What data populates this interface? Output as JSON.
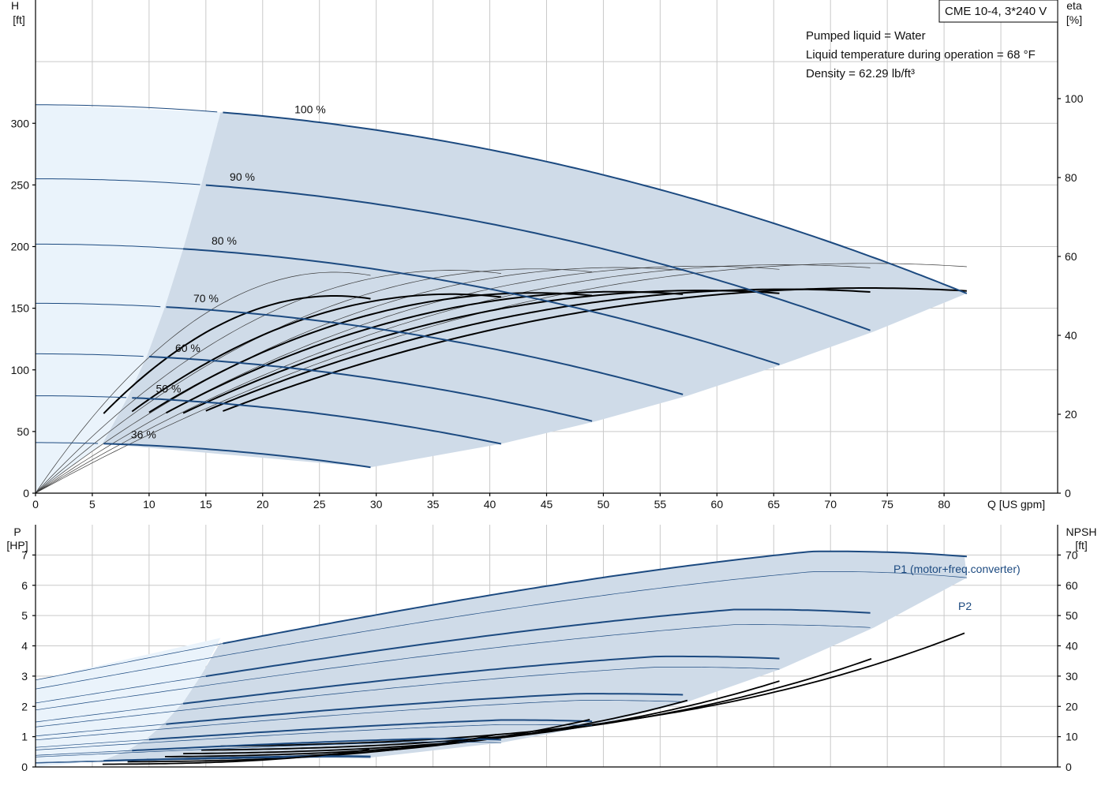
{
  "header": {
    "model_label": "CME 10-4, 3*240 V",
    "liquid_info": [
      "Pumped liquid = Water",
      "Liquid temperature during operation = 68 °F",
      "Density = 62.29 lb/ft³"
    ]
  },
  "colors": {
    "curve": "#1c4a80",
    "eta": "#000000",
    "thin": "#3a3a3a",
    "band": "#cfdbe8",
    "light_band": "#eaf3fb"
  },
  "chart_data": [
    {
      "type": "line",
      "title": "",
      "y_axis": {
        "label": [
          "H",
          "[ft]"
        ],
        "range": [
          0,
          400
        ],
        "ticks": [
          0,
          50,
          100,
          150,
          200,
          250,
          300
        ],
        "ticks_shown": [
          "0",
          "50",
          "100",
          "150",
          "200",
          "250",
          "300"
        ]
      },
      "y2_axis": {
        "label": [
          "eta",
          "[%]"
        ],
        "range": [
          0,
          125
        ],
        "ticks": [
          0,
          20,
          40,
          60,
          80,
          100
        ],
        "ticks_shown": [
          "0",
          "20",
          "40",
          "60",
          "80",
          "100"
        ]
      },
      "x_axis": {
        "label": "Q [US gpm]",
        "range": [
          0,
          90
        ],
        "ticks": [
          0,
          5,
          10,
          15,
          20,
          25,
          30,
          35,
          40,
          45,
          50,
          55,
          60,
          65,
          70,
          75,
          80
        ],
        "ticks_shown": [
          "0",
          "5",
          "10",
          "15",
          "20",
          "25",
          "30",
          "35",
          "40",
          "45",
          "50",
          "55",
          "60",
          "65",
          "70",
          "75",
          "80"
        ]
      },
      "grid": true,
      "speed_curves": [
        {
          "label": "100 %",
          "shutoff_h": 315,
          "qmax": 82,
          "h_end": 162,
          "op_start_q": 16.3
        },
        {
          "label": "90 %",
          "shutoff_h": 255,
          "qmax": 73.8,
          "h_end": 131,
          "op_start_q": 14.6
        },
        {
          "label": "80 %",
          "shutoff_h": 202,
          "qmax": 65.6,
          "h_end": 104,
          "op_start_q": 13.0
        },
        {
          "label": "70 %",
          "shutoff_h": 154,
          "qmax": 57.4,
          "h_end": 79,
          "op_start_q": 11.4
        },
        {
          "label": "60 %",
          "shutoff_h": 113,
          "qmax": 49.2,
          "h_end": 58,
          "op_start_q": 9.8
        },
        {
          "label": "50 %",
          "shutoff_h": 79,
          "qmax": 41.0,
          "h_end": 40,
          "op_start_q": 8.1
        },
        {
          "label": "36 %",
          "shutoff_h": 41,
          "qmax": 29.5,
          "h_end": 21,
          "op_start_q": 5.9
        }
      ],
      "efficiency_peak_pct": 52
    },
    {
      "type": "line",
      "title": "",
      "y_axis": {
        "label": [
          "P",
          "[HP]"
        ],
        "range": [
          0,
          8
        ],
        "ticks": [
          0,
          1,
          2,
          3,
          4,
          5,
          6,
          7
        ],
        "ticks_shown": [
          "0",
          "1",
          "2",
          "3",
          "4",
          "5",
          "6",
          "7"
        ]
      },
      "y2_axis": {
        "label": [
          "NPSH",
          "[ft]"
        ],
        "range": [
          0,
          80
        ],
        "ticks": [
          0,
          10,
          20,
          30,
          40,
          50,
          60,
          70
        ],
        "ticks_shown": [
          "0",
          "10",
          "20",
          "30",
          "40",
          "50",
          "60",
          "70"
        ]
      },
      "x_axis": {
        "range": [
          0,
          90
        ]
      },
      "grid": true,
      "series_labels": [
        "P1 (motor+freq.converter)",
        "P2"
      ],
      "power_curves": [
        {
          "qmax": 82,
          "p1_start": 4.35,
          "p1_peak": 7.12,
          "p1_end": 6.95,
          "p2_start": 3.9,
          "p2_peak": 6.45,
          "p2_end": 6.25,
          "npsh_end": 44.5
        },
        {
          "qmax": 73.8,
          "p1_start": 3.2,
          "p1_peak": 5.2,
          "p1_end": 5.08,
          "p2_start": 2.85,
          "p2_peak": 4.7,
          "p2_end": 4.6,
          "npsh_end": 36
        },
        {
          "qmax": 65.6,
          "p1_start": 2.25,
          "p1_peak": 3.65,
          "p1_end": 3.58,
          "p2_start": 2.0,
          "p2_peak": 3.3,
          "p2_end": 3.23,
          "npsh_end": 28.5
        },
        {
          "qmax": 57.4,
          "p1_start": 1.55,
          "p1_peak": 2.42,
          "p1_end": 2.38,
          "p2_start": 1.35,
          "p2_peak": 2.2,
          "p2_end": 2.15,
          "npsh_end": 22
        },
        {
          "qmax": 49.2,
          "p1_start": 0.98,
          "p1_peak": 1.55,
          "p1_end": 1.5,
          "p2_start": 0.85,
          "p2_peak": 1.4,
          "p2_end": 1.37,
          "npsh_end": 16
        },
        {
          "qmax": 41.0,
          "p1_start": 0.58,
          "p1_peak": 0.93,
          "p1_end": 0.9,
          "p2_start": 0.5,
          "p2_peak": 0.83,
          "p2_end": 0.8,
          "npsh_end": 11
        },
        {
          "qmax": 29.5,
          "p1_start": 0.22,
          "p1_peak": 0.36,
          "p1_end": 0.35,
          "p2_start": 0.19,
          "p2_peak": 0.32,
          "p2_end": 0.31,
          "npsh_end": 5.8
        }
      ]
    }
  ]
}
